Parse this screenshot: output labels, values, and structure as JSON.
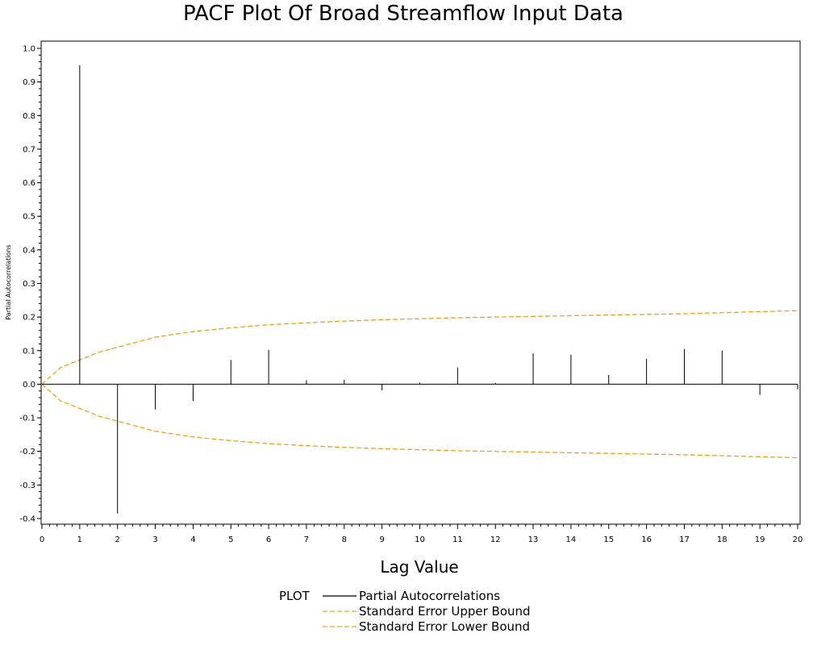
{
  "colors": {
    "pacf": "#000000",
    "bounds": "#E8A317",
    "axis": "#000000"
  },
  "legend": {
    "title": "PLOT",
    "entries": [
      {
        "label": "Partial Autocorrelations",
        "style": "solid",
        "color": "#000000"
      },
      {
        "label": "Standard Error Upper Bound",
        "style": "dashed",
        "color": "#E8A317"
      },
      {
        "label": "Standard Error Lower Bound",
        "style": "dashed",
        "color": "#E8A317"
      }
    ]
  },
  "chart_data": {
    "type": "bar",
    "title": "PACF Plot Of Broad Streamflow Input Data",
    "xlabel": "Lag Value",
    "ylabel": "Partial Autocorrelations",
    "xlim": [
      0,
      20
    ],
    "ylim": [
      -0.42,
      1.02
    ],
    "xticks": [
      "0",
      "1",
      "2",
      "3",
      "4",
      "5",
      "6",
      "7",
      "8",
      "9",
      "10",
      "11",
      "12",
      "13",
      "14",
      "15",
      "16",
      "17",
      "18",
      "19",
      "20"
    ],
    "yticks": [
      "1.0",
      "0.9",
      "0.8",
      "0.7",
      "0.6",
      "0.5",
      "0.4",
      "0.3",
      "0.2",
      "0.1",
      "0.0",
      "-0.1",
      "-0.2",
      "-0.3",
      "-0.4"
    ],
    "ytick_values": [
      1.0,
      0.9,
      0.8,
      0.7,
      0.6,
      0.5,
      0.4,
      0.3,
      0.2,
      0.1,
      0.0,
      -0.1,
      -0.2,
      -0.3,
      -0.4
    ],
    "grid": false,
    "legend_position": "bottom",
    "series": [
      {
        "name": "Partial Autocorrelations",
        "type": "needle",
        "x": [
          1,
          2,
          3,
          4,
          5,
          6,
          7,
          8,
          9,
          10,
          11,
          12,
          13,
          14,
          15,
          16,
          17,
          18,
          19,
          20
        ],
        "values": [
          0.95,
          -0.385,
          -0.075,
          -0.05,
          0.072,
          0.102,
          0.012,
          0.013,
          -0.018,
          0.005,
          0.05,
          0.004,
          0.092,
          0.088,
          0.028,
          0.076,
          0.105,
          0.1,
          -0.032,
          -0.015
        ]
      },
      {
        "name": "Standard Error Upper Bound",
        "type": "line",
        "x": [
          0,
          0.5,
          1,
          1.5,
          2,
          3,
          4,
          5,
          6,
          7,
          8,
          9,
          10,
          11,
          12,
          13,
          14,
          15,
          16,
          17,
          18,
          19,
          20
        ],
        "values": [
          0,
          0.05,
          0.072,
          0.095,
          0.11,
          0.14,
          0.157,
          0.168,
          0.177,
          0.183,
          0.188,
          0.192,
          0.195,
          0.198,
          0.2,
          0.202,
          0.204,
          0.206,
          0.208,
          0.21,
          0.213,
          0.216,
          0.219
        ]
      },
      {
        "name": "Standard Error Lower Bound",
        "type": "line",
        "x": [
          0,
          0.5,
          1,
          1.5,
          2,
          3,
          4,
          5,
          6,
          7,
          8,
          9,
          10,
          11,
          12,
          13,
          14,
          15,
          16,
          17,
          18,
          19,
          20
        ],
        "values": [
          0,
          -0.05,
          -0.072,
          -0.095,
          -0.11,
          -0.14,
          -0.157,
          -0.168,
          -0.177,
          -0.183,
          -0.188,
          -0.192,
          -0.195,
          -0.198,
          -0.2,
          -0.202,
          -0.204,
          -0.206,
          -0.208,
          -0.21,
          -0.213,
          -0.216,
          -0.219
        ]
      }
    ]
  }
}
